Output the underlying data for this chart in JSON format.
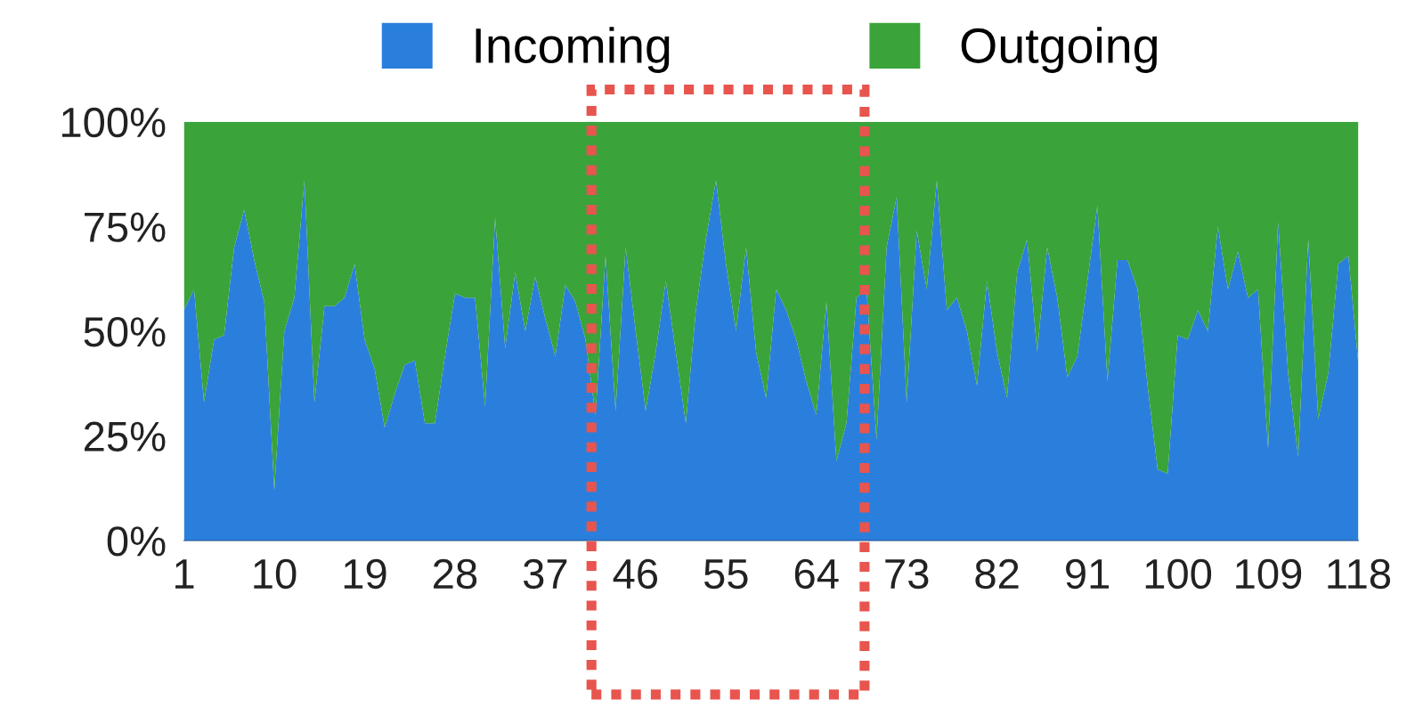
{
  "chart_data": {
    "type": "area",
    "stacked": true,
    "x": [
      1,
      2,
      3,
      4,
      5,
      6,
      7,
      8,
      9,
      10,
      11,
      12,
      13,
      14,
      15,
      16,
      17,
      18,
      19,
      20,
      21,
      22,
      23,
      24,
      25,
      26,
      27,
      28,
      29,
      30,
      31,
      32,
      33,
      34,
      35,
      36,
      37,
      38,
      39,
      40,
      41,
      42,
      43,
      44,
      45,
      46,
      47,
      48,
      49,
      50,
      51,
      52,
      53,
      54,
      55,
      56,
      57,
      58,
      59,
      60,
      61,
      62,
      63,
      64,
      65,
      66,
      67,
      68,
      69,
      70,
      71,
      72,
      73,
      74,
      75,
      76,
      77,
      78,
      79,
      80,
      81,
      82,
      83,
      84,
      85,
      86,
      87,
      88,
      89,
      90,
      91,
      92,
      93,
      94,
      95,
      96,
      97,
      98,
      99,
      100,
      101,
      102,
      103,
      104,
      105,
      106,
      107,
      108,
      109,
      110,
      111,
      112,
      113,
      114,
      115,
      116,
      117,
      118
    ],
    "series": [
      {
        "name": "Incoming",
        "color": "#2b7fdc",
        "values": [
          55,
          60,
          33,
          48,
          49,
          70,
          79,
          67,
          57,
          12,
          50,
          58,
          86,
          33,
          56,
          56,
          58,
          66,
          48,
          41,
          27,
          35,
          42,
          43,
          28,
          28,
          44,
          59,
          58,
          58,
          32,
          77,
          46,
          64,
          50,
          63,
          53,
          44,
          61,
          57,
          48,
          30,
          68,
          31,
          70,
          50,
          31,
          45,
          62,
          45,
          28,
          55,
          72,
          86,
          66,
          50,
          70,
          45,
          34,
          60,
          55,
          48,
          38,
          30,
          57,
          19,
          28,
          58,
          60,
          24,
          70,
          82,
          33,
          74,
          60,
          86,
          55,
          58,
          50,
          37,
          62,
          45,
          34,
          64,
          72,
          45,
          70,
          58,
          39,
          44,
          62,
          80,
          38,
          67,
          67,
          60,
          37,
          17,
          16,
          49,
          48,
          55,
          50,
          75,
          60,
          69,
          58,
          60,
          22,
          76,
          40,
          20,
          72,
          29,
          40,
          66,
          68,
          42
        ]
      },
      {
        "name": "Outgoing",
        "color": "#3aa33a",
        "values": [
          45,
          40,
          67,
          52,
          51,
          30,
          21,
          33,
          43,
          88,
          50,
          42,
          14,
          67,
          44,
          44,
          42,
          34,
          52,
          59,
          73,
          65,
          58,
          57,
          72,
          72,
          56,
          41,
          42,
          42,
          68,
          23,
          54,
          36,
          50,
          37,
          47,
          56,
          39,
          43,
          52,
          70,
          32,
          69,
          30,
          50,
          69,
          55,
          38,
          55,
          72,
          45,
          28,
          14,
          34,
          50,
          30,
          55,
          66,
          40,
          45,
          52,
          62,
          70,
          43,
          81,
          72,
          42,
          40,
          76,
          30,
          18,
          67,
          26,
          40,
          14,
          45,
          42,
          50,
          63,
          38,
          55,
          66,
          36,
          28,
          55,
          30,
          42,
          61,
          56,
          38,
          20,
          62,
          33,
          33,
          40,
          63,
          83,
          84,
          51,
          52,
          45,
          50,
          25,
          40,
          31,
          42,
          40,
          78,
          24,
          60,
          80,
          28,
          71,
          60,
          34,
          32,
          58
        ]
      }
    ],
    "xlim": [
      1,
      118
    ],
    "xticks": [
      1,
      10,
      19,
      28,
      37,
      46,
      55,
      64,
      73,
      82,
      91,
      100,
      109,
      118
    ],
    "ylim": [
      0,
      100
    ],
    "yticks": [
      {
        "value": 0,
        "label": "0%"
      },
      {
        "value": 25,
        "label": "25%"
      },
      {
        "value": 50,
        "label": "50%"
      },
      {
        "value": 75,
        "label": "75%"
      },
      {
        "value": 100,
        "label": "100%"
      }
    ],
    "grid": false,
    "legend": "top"
  }
}
